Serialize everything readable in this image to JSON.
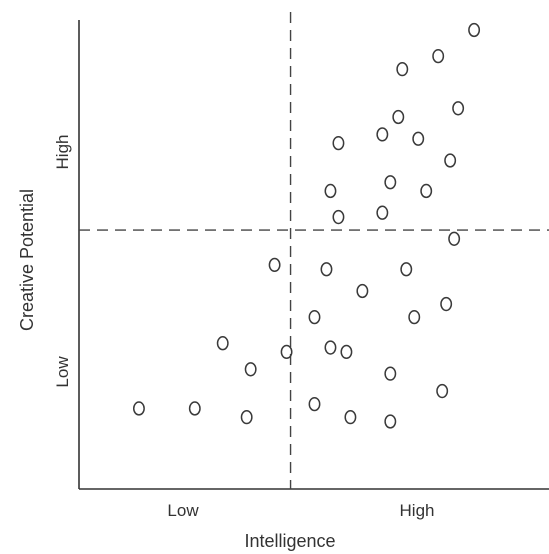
{
  "chart_data": {
    "type": "scatter",
    "xlabel": "Intelligence",
    "ylabel": "Creative Potential",
    "x_ticks": [
      "Low",
      "High"
    ],
    "y_ticks": [
      "Low",
      "High"
    ],
    "xlim": [
      0,
      10
    ],
    "ylim": [
      0,
      10
    ],
    "x_threshold": 4.4,
    "y_threshold": 5.4,
    "grid": false,
    "legend": "none",
    "marker": "open-circle",
    "points": [
      {
        "x": 9.0,
        "y": 10.0
      },
      {
        "x": 8.1,
        "y": 9.4
      },
      {
        "x": 7.2,
        "y": 9.1
      },
      {
        "x": 8.6,
        "y": 8.2
      },
      {
        "x": 7.1,
        "y": 8.0
      },
      {
        "x": 6.7,
        "y": 7.6
      },
      {
        "x": 7.6,
        "y": 7.5
      },
      {
        "x": 5.6,
        "y": 7.4
      },
      {
        "x": 8.4,
        "y": 7.0
      },
      {
        "x": 6.9,
        "y": 6.5
      },
      {
        "x": 7.8,
        "y": 6.3
      },
      {
        "x": 5.4,
        "y": 6.3
      },
      {
        "x": 5.6,
        "y": 5.7
      },
      {
        "x": 6.7,
        "y": 5.8
      },
      {
        "x": 8.5,
        "y": 5.2
      },
      {
        "x": 4.0,
        "y": 4.6
      },
      {
        "x": 5.3,
        "y": 4.5
      },
      {
        "x": 7.3,
        "y": 4.5
      },
      {
        "x": 6.2,
        "y": 4.0
      },
      {
        "x": 8.3,
        "y": 3.7
      },
      {
        "x": 5.0,
        "y": 3.4
      },
      {
        "x": 7.5,
        "y": 3.4
      },
      {
        "x": 2.7,
        "y": 2.8
      },
      {
        "x": 5.4,
        "y": 2.7
      },
      {
        "x": 4.3,
        "y": 2.6
      },
      {
        "x": 5.8,
        "y": 2.6
      },
      {
        "x": 3.4,
        "y": 2.2
      },
      {
        "x": 6.9,
        "y": 2.1
      },
      {
        "x": 8.2,
        "y": 1.7
      },
      {
        "x": 0.6,
        "y": 1.3
      },
      {
        "x": 2.0,
        "y": 1.3
      },
      {
        "x": 5.0,
        "y": 1.4
      },
      {
        "x": 3.3,
        "y": 1.1
      },
      {
        "x": 5.9,
        "y": 1.1
      },
      {
        "x": 6.9,
        "y": 1.0
      }
    ]
  }
}
